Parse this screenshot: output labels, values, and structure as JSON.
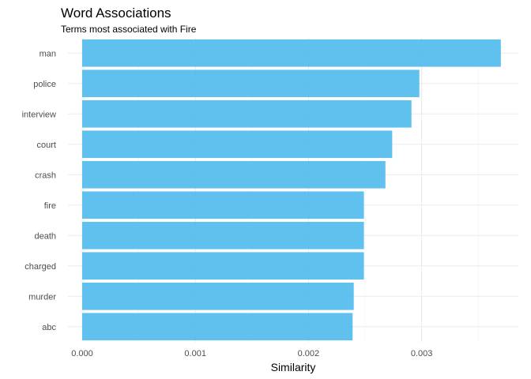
{
  "chart_data": {
    "type": "bar",
    "orientation": "horizontal",
    "title": "Word Associations",
    "subtitle": "Terms most associated with Fire",
    "xlabel": "Similarity",
    "ylabel": "",
    "categories": [
      "man",
      "police",
      "interview",
      "court",
      "crash",
      "fire",
      "death",
      "charged",
      "murder",
      "abc"
    ],
    "values": [
      0.0037,
      0.00298,
      0.00291,
      0.00274,
      0.00268,
      0.00249,
      0.00249,
      0.00249,
      0.0024,
      0.00239
    ],
    "xlim": [
      0,
      0.00375
    ],
    "x_ticks": [
      0,
      0.001,
      0.002,
      0.003
    ],
    "x_tick_labels": [
      "0.000",
      "0.001",
      "0.002",
      "0.003"
    ],
    "grid": true,
    "legend": "none",
    "bar_color": "#4fb9ec"
  }
}
